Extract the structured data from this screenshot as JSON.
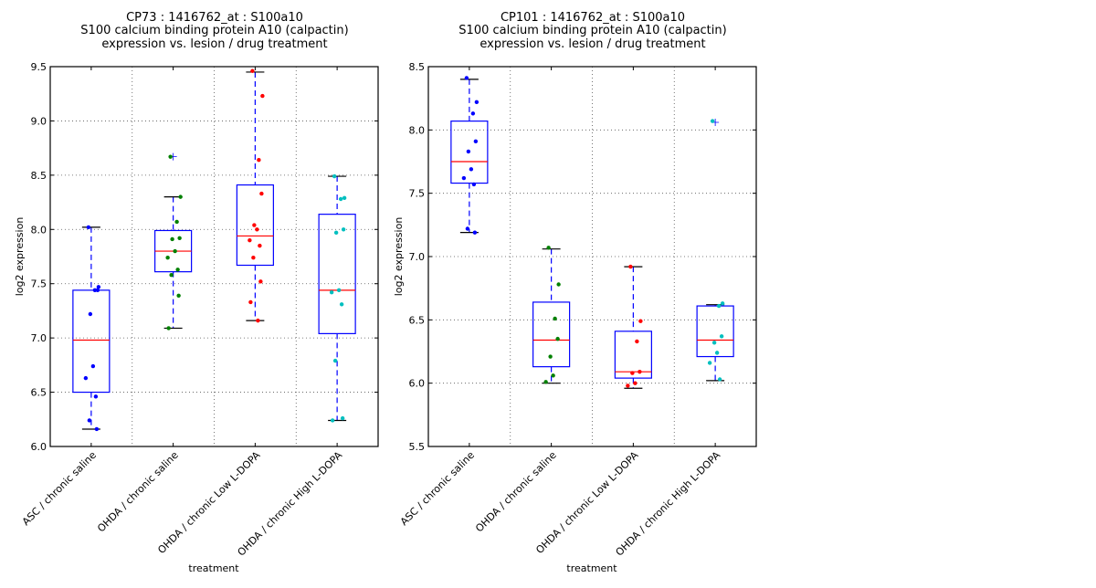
{
  "chart_data": [
    {
      "type": "box",
      "title": [
        "CP73 : 1416762_at : S100a10",
        "S100 calcium binding protein A10 (calpactin)",
        "expression vs. lesion / drug treatment"
      ],
      "xlabel": "treatment",
      "ylabel": "log2 expression",
      "ylim": [
        6.0,
        9.5
      ],
      "yticks": [
        "6.0",
        "6.5",
        "7.0",
        "7.5",
        "8.0",
        "8.5",
        "9.0",
        "9.5"
      ],
      "grid": true,
      "categories": [
        "ASC / chronic saline",
        "OHDA / chronic saline",
        "OHDA / chronic Low L-DOPA",
        "OHDA / chronic High L-DOPA"
      ],
      "point_colors": [
        "#0000ff",
        "#008000",
        "#ff0000",
        "#00bfbf"
      ],
      "box_color": "#0000ff",
      "median_color": "#ff0000",
      "series": [
        {
          "name": "ASC / chronic saline",
          "whisker_low": 6.16,
          "q1": 6.5,
          "median": 6.98,
          "q3": 7.44,
          "whisker_high": 8.02,
          "outliers": [],
          "points": [
            8.02,
            7.47,
            7.44,
            7.44,
            7.22,
            6.74,
            6.63,
            6.46,
            6.24,
            6.16
          ]
        },
        {
          "name": "OHDA / chronic saline",
          "whisker_low": 7.09,
          "q1": 7.61,
          "median": 7.8,
          "q3": 7.99,
          "whisker_high": 8.3,
          "outliers": [
            8.67
          ],
          "points": [
            8.67,
            8.3,
            8.07,
            7.92,
            7.91,
            7.8,
            7.74,
            7.63,
            7.58,
            7.39,
            7.09
          ]
        },
        {
          "name": "OHDA / chronic Low L-DOPA",
          "whisker_low": 7.16,
          "q1": 7.67,
          "median": 7.94,
          "q3": 8.41,
          "whisker_high": 9.45,
          "outliers": [],
          "points": [
            9.46,
            9.23,
            8.64,
            8.33,
            8.04,
            8.0,
            7.9,
            7.85,
            7.74,
            7.52,
            7.33,
            7.16
          ]
        },
        {
          "name": "OHDA / chronic High L-DOPA",
          "whisker_low": 6.24,
          "q1": 7.04,
          "median": 7.44,
          "q3": 8.14,
          "whisker_high": 8.49,
          "outliers": [],
          "points": [
            8.49,
            8.29,
            8.28,
            8.0,
            7.97,
            7.44,
            7.42,
            7.31,
            6.79,
            6.26,
            6.24
          ]
        }
      ]
    },
    {
      "type": "box",
      "title": [
        "CP101 : 1416762_at : S100a10",
        "S100 calcium binding protein A10 (calpactin)",
        "expression vs. lesion / drug treatment"
      ],
      "xlabel": "treatment",
      "ylabel": "log2 expression",
      "ylim": [
        5.5,
        8.5
      ],
      "yticks": [
        "5.5",
        "6.0",
        "6.5",
        "7.0",
        "7.5",
        "8.0",
        "8.5"
      ],
      "grid": true,
      "categories": [
        "ASC / chronic saline",
        "OHDA / chronic saline",
        "OHDA / chronic Low L-DOPA",
        "OHDA / chronic High L-DOPA"
      ],
      "point_colors": [
        "#0000ff",
        "#008000",
        "#ff0000",
        "#00bfbf"
      ],
      "box_color": "#0000ff",
      "median_color": "#ff0000",
      "series": [
        {
          "name": "ASC / chronic saline",
          "whisker_low": 7.19,
          "q1": 7.58,
          "median": 7.75,
          "q3": 8.07,
          "whisker_high": 8.4,
          "outliers": [],
          "points": [
            8.41,
            8.22,
            8.13,
            7.91,
            7.83,
            7.69,
            7.62,
            7.57,
            7.22,
            7.19
          ]
        },
        {
          "name": "OHDA / chronic saline",
          "whisker_low": 6.0,
          "q1": 6.13,
          "median": 6.34,
          "q3": 6.64,
          "whisker_high": 7.06,
          "outliers": [],
          "points": [
            7.07,
            6.78,
            6.51,
            6.35,
            6.21,
            6.06,
            6.01
          ]
        },
        {
          "name": "OHDA / chronic Low L-DOPA",
          "whisker_low": 5.96,
          "q1": 6.04,
          "median": 6.09,
          "q3": 6.41,
          "whisker_high": 6.92,
          "outliers": [],
          "points": [
            6.92,
            6.49,
            6.33,
            6.09,
            6.08,
            6.0,
            5.98
          ]
        },
        {
          "name": "OHDA / chronic High L-DOPA",
          "whisker_low": 6.02,
          "q1": 6.21,
          "median": 6.34,
          "q3": 6.61,
          "whisker_high": 6.62,
          "outliers": [
            8.06
          ],
          "points": [
            8.07,
            6.63,
            6.61,
            6.37,
            6.32,
            6.24,
            6.16,
            6.03
          ]
        }
      ]
    }
  ]
}
